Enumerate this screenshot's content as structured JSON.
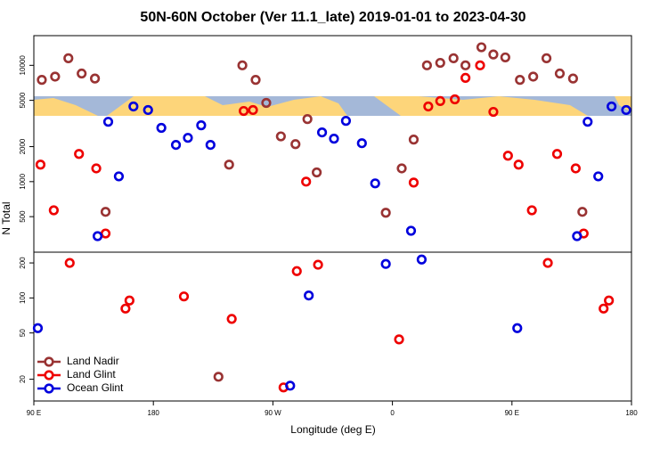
{
  "chart_data": {
    "type": "scatter",
    "title": "50N-60N October (Ver 11.1_late)   2019-01-01 to 2023-04-30",
    "xlabel": "Longitude (deg E)",
    "ylabel": "N Total",
    "log_y": true,
    "legend": "lower left",
    "xlim": [
      90,
      540
    ],
    "xticks": [
      {
        "value": 90,
        "label": "90 E"
      },
      180,
      {
        "value": 270,
        "label": "90 W"
      },
      {
        "value": 360,
        "label": "0"
      },
      {
        "value": 450,
        "label": "90 E"
      },
      {
        "value": 540,
        "label": "180"
      }
    ],
    "ylim": [
      13,
      18000
    ],
    "yticks": [
      20,
      50,
      100,
      200,
      500,
      1000,
      2000,
      5000,
      10000
    ],
    "series": [
      {
        "name": "Land Nadir",
        "color": "#993333",
        "x": [
          96,
          106,
          116,
          126,
          136,
          144,
          229,
          237,
          247,
          257,
          265,
          276,
          287,
          296,
          303,
          355,
          367,
          376,
          386,
          396,
          406,
          415,
          427,
          436,
          445,
          456,
          466,
          476,
          486,
          496,
          503
        ],
        "values": [
          7500,
          8000,
          11500,
          8500,
          7700,
          550,
          21,
          1400,
          10000,
          7500,
          4750,
          2450,
          2100,
          3450,
          1200,
          540,
          1300,
          2300,
          10000,
          10500,
          11500,
          10000,
          14300,
          12400,
          11700,
          7500,
          8000,
          11500,
          8500,
          7700,
          550
        ]
      },
      {
        "name": "Land Glint",
        "color": "#ee0000",
        "x": [
          95,
          105,
          117,
          124,
          137,
          144,
          159,
          162,
          203,
          239,
          248,
          255,
          278,
          288,
          295,
          304,
          365,
          376,
          387,
          396,
          407,
          415,
          426,
          436,
          447,
          455,
          465,
          477,
          484,
          498,
          504,
          519,
          523
        ],
        "values": [
          1400,
          567,
          200,
          1730,
          1300,
          358,
          81,
          95,
          103,
          66,
          4050,
          4130,
          17,
          170,
          1000,
          193,
          44,
          982,
          4430,
          4930,
          5100,
          7800,
          10000,
          3980,
          1670,
          1400,
          567,
          200,
          1730,
          1300,
          358,
          81,
          95
        ]
      },
      {
        "name": "Ocean Glint",
        "color": "#0000dd",
        "x": [
          93,
          138,
          146,
          154,
          165,
          176,
          186,
          197,
          206,
          216,
          223,
          283,
          297,
          307,
          316,
          325,
          337,
          347,
          355,
          374,
          382,
          454,
          499,
          507,
          515,
          525,
          536
        ],
        "values": [
          55,
          340,
          3270,
          1110,
          4430,
          4130,
          2900,
          2070,
          2380,
          3050,
          2070,
          17.6,
          105,
          2650,
          2340,
          3330,
          2140,
          966,
          196,
          378,
          214,
          55,
          340,
          3270,
          1110,
          4430,
          4130
        ]
      }
    ]
  }
}
